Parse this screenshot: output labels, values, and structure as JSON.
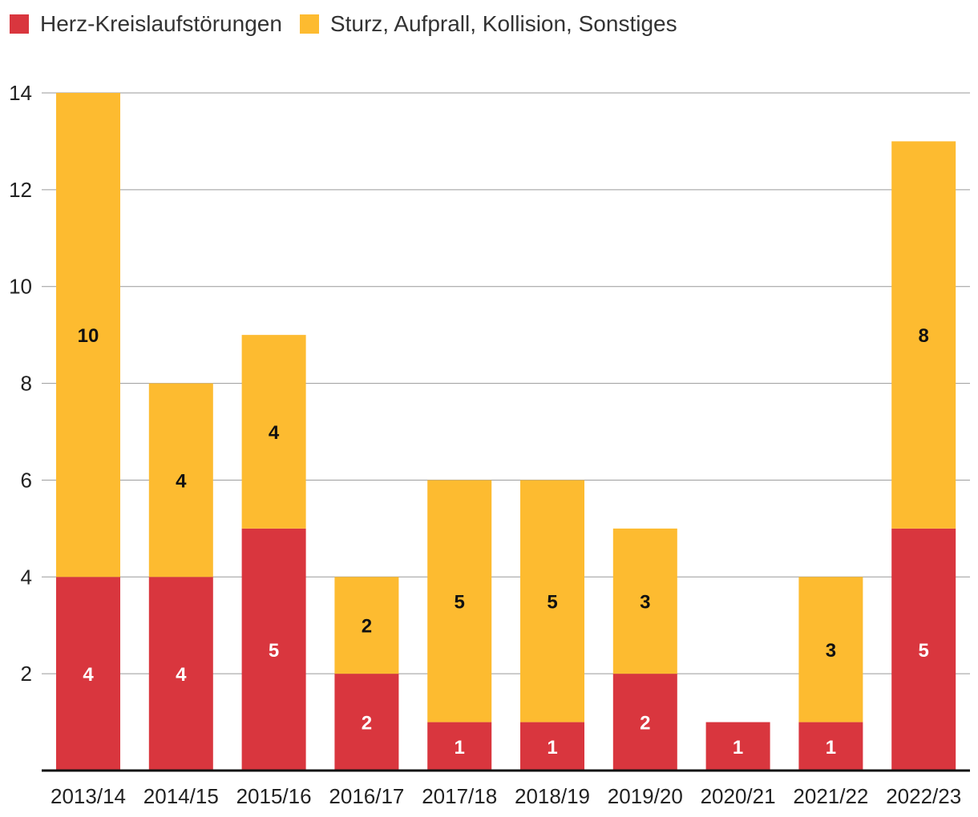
{
  "chart_data": {
    "type": "bar",
    "stacked": true,
    "title": "",
    "xlabel": "",
    "ylabel": "",
    "categories": [
      "2013/14",
      "2014/15",
      "2015/16",
      "2016/17",
      "2017/18",
      "2018/19",
      "2019/20",
      "2020/21",
      "2021/22",
      "2022/23"
    ],
    "series": [
      {
        "name": "Herz-Kreislaufstörungen",
        "color": "#d9363e",
        "label_color": "#ffffff",
        "values": [
          4,
          4,
          5,
          2,
          1,
          1,
          2,
          1,
          1,
          5
        ]
      },
      {
        "name": "Sturz, Aufprall, Kollision, Sonstiges",
        "color": "#fdbb30",
        "label_color": "#111111",
        "values": [
          10,
          4,
          4,
          2,
          5,
          5,
          3,
          0,
          3,
          8
        ]
      }
    ],
    "ylim": [
      0,
      14
    ],
    "yticks": [
      2,
      4,
      6,
      8,
      10,
      12,
      14
    ],
    "grid": true,
    "legend": "top-left"
  }
}
